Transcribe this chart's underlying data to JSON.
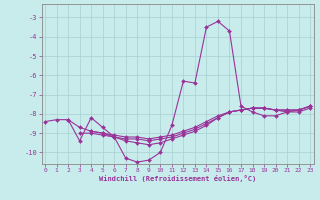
{
  "xlabel": "Windchill (Refroidissement éolien,°C)",
  "background_color": "#c8ecec",
  "grid_color": "#a8d0d0",
  "line_color": "#993399",
  "xlim": [
    -0.3,
    23.3
  ],
  "ylim": [
    -10.6,
    -2.3
  ],
  "yticks": [
    -10,
    -9,
    -8,
    -7,
    -6,
    -5,
    -4,
    -3
  ],
  "xticks": [
    0,
    1,
    2,
    3,
    4,
    5,
    6,
    7,
    8,
    9,
    10,
    11,
    12,
    13,
    14,
    15,
    16,
    17,
    18,
    19,
    20,
    21,
    22,
    23
  ],
  "lines": [
    {
      "x": [
        0,
        1,
        2,
        3,
        4,
        5,
        6,
        7,
        8,
        9,
        10,
        11,
        12,
        13,
        14,
        15,
        16,
        17,
        18,
        19,
        20,
        21,
        22,
        23
      ],
      "y": [
        -8.4,
        -8.3,
        -8.3,
        -9.4,
        -8.2,
        -8.7,
        -9.2,
        -10.3,
        -10.5,
        -10.4,
        -10.0,
        -8.6,
        -6.3,
        -6.4,
        -3.5,
        -3.2,
        -3.7,
        -7.6,
        -7.9,
        -8.1,
        -8.1,
        -7.9,
        -7.8,
        -7.6
      ]
    },
    {
      "x": [
        2,
        3,
        4,
        5,
        6,
        7,
        8,
        9,
        10,
        11,
        12,
        13,
        14,
        15,
        16,
        17,
        18,
        19,
        20,
        21,
        22,
        23
      ],
      "y": [
        -8.3,
        -8.7,
        -8.9,
        -9.0,
        -9.2,
        -9.4,
        -9.5,
        -9.6,
        -9.5,
        -9.3,
        -9.1,
        -8.9,
        -8.6,
        -8.2,
        -7.9,
        -7.8,
        -7.7,
        -7.7,
        -7.8,
        -7.9,
        -7.9,
        -7.7
      ]
    },
    {
      "x": [
        3,
        4,
        5,
        6,
        7,
        8,
        9,
        10,
        11,
        12,
        13,
        14,
        15,
        16,
        17,
        18,
        19,
        20,
        21,
        22,
        23
      ],
      "y": [
        -9.0,
        -9.0,
        -9.1,
        -9.2,
        -9.3,
        -9.3,
        -9.4,
        -9.3,
        -9.2,
        -9.0,
        -8.8,
        -8.5,
        -8.2,
        -7.9,
        -7.8,
        -7.7,
        -7.7,
        -7.8,
        -7.8,
        -7.8,
        -7.6
      ]
    },
    {
      "x": [
        4,
        5,
        6,
        7,
        8,
        9,
        10,
        11,
        12,
        13,
        14,
        15,
        16,
        17,
        18,
        19,
        20,
        21,
        22,
        23
      ],
      "y": [
        -8.9,
        -9.0,
        -9.1,
        -9.2,
        -9.2,
        -9.3,
        -9.2,
        -9.1,
        -8.9,
        -8.7,
        -8.4,
        -8.1,
        -7.9,
        -7.8,
        -7.7,
        -7.7,
        -7.8,
        -7.8,
        -7.8,
        -7.6
      ]
    }
  ]
}
